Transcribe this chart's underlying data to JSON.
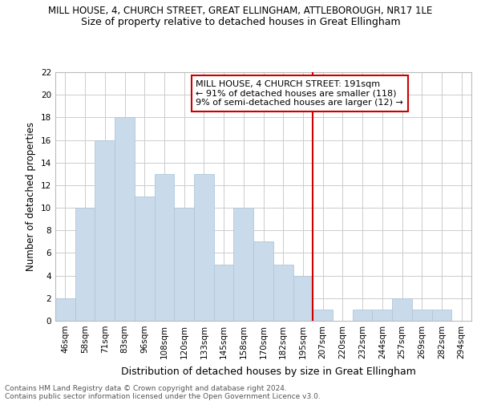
{
  "title": "MILL HOUSE, 4, CHURCH STREET, GREAT ELLINGHAM, ATTLEBOROUGH, NR17 1LE",
  "subtitle": "Size of property relative to detached houses in Great Ellingham",
  "xlabel": "Distribution of detached houses by size in Great Ellingham",
  "ylabel": "Number of detached properties",
  "categories": [
    "46sqm",
    "58sqm",
    "71sqm",
    "83sqm",
    "96sqm",
    "108sqm",
    "120sqm",
    "133sqm",
    "145sqm",
    "158sqm",
    "170sqm",
    "182sqm",
    "195sqm",
    "207sqm",
    "220sqm",
    "232sqm",
    "244sqm",
    "257sqm",
    "269sqm",
    "282sqm",
    "294sqm"
  ],
  "values": [
    2,
    10,
    16,
    18,
    11,
    13,
    10,
    13,
    5,
    10,
    7,
    5,
    4,
    1,
    0,
    1,
    1,
    2,
    1,
    1,
    0
  ],
  "bar_color": "#c9daea",
  "bar_edge_color": "#b0c8dc",
  "vline_x_idx": 12.5,
  "vline_color": "#cc0000",
  "annotation_text": "MILL HOUSE, 4 CHURCH STREET: 191sqm\n← 91% of detached houses are smaller (118)\n9% of semi-detached houses are larger (12) →",
  "annotation_box_color": "#ffffff",
  "annotation_box_edgecolor": "#cc0000",
  "ylim": [
    0,
    22
  ],
  "yticks": [
    0,
    2,
    4,
    6,
    8,
    10,
    12,
    14,
    16,
    18,
    20,
    22
  ],
  "footer_text": "Contains HM Land Registry data © Crown copyright and database right 2024.\nContains public sector information licensed under the Open Government Licence v3.0.",
  "bg_color": "#ffffff",
  "grid_color": "#cccccc",
  "title_fontsize": 8.5,
  "subtitle_fontsize": 9,
  "xlabel_fontsize": 9,
  "ylabel_fontsize": 8.5,
  "tick_fontsize": 7.5,
  "annot_fontsize": 8,
  "footer_fontsize": 6.5
}
